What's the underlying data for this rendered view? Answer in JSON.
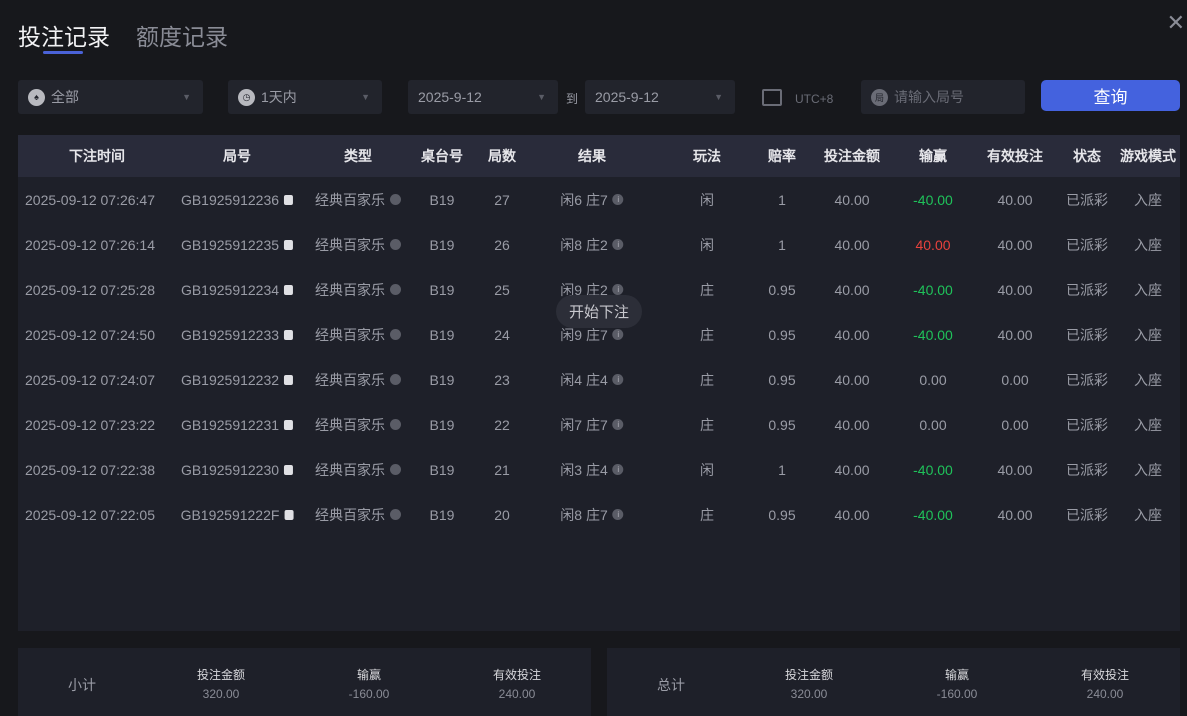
{
  "tabs": [
    "投注记录",
    "额度记录"
  ],
  "filters": {
    "game": "全部",
    "period": "1天内",
    "date_from": "2025-9-12",
    "to": "到",
    "date_to": "2025-9-12",
    "timezone": "UTC+8",
    "round_placeholder": "请输入局号",
    "query": "查询"
  },
  "columns": [
    "下注时间",
    "局号",
    "类型",
    "桌台号",
    "局数",
    "结果",
    "玩法",
    "赔率",
    "投注金额",
    "输赢",
    "有效投注",
    "状态",
    "游戏模式"
  ],
  "rows": [
    [
      "2025-09-12 07:26:47",
      "GB1925912236",
      "经典百家乐",
      "B19",
      "27",
      "闲6 庄7",
      "闲",
      "1",
      "40.00",
      "-40.00",
      "40.00",
      "已派彩",
      "入座"
    ],
    [
      "2025-09-12 07:26:14",
      "GB1925912235",
      "经典百家乐",
      "B19",
      "26",
      "闲8 庄2",
      "闲",
      "1",
      "40.00",
      "40.00",
      "40.00",
      "已派彩",
      "入座"
    ],
    [
      "2025-09-12 07:25:28",
      "GB1925912234",
      "经典百家乐",
      "B19",
      "25",
      "闲9 庄2",
      "庄",
      "0.95",
      "40.00",
      "-40.00",
      "40.00",
      "已派彩",
      "入座"
    ],
    [
      "2025-09-12 07:24:50",
      "GB1925912233",
      "经典百家乐",
      "B19",
      "24",
      "闲9 庄7",
      "庄",
      "0.95",
      "40.00",
      "-40.00",
      "40.00",
      "已派彩",
      "入座"
    ],
    [
      "2025-09-12 07:24:07",
      "GB1925912232",
      "经典百家乐",
      "B19",
      "23",
      "闲4 庄4",
      "庄",
      "0.95",
      "40.00",
      "0.00",
      "0.00",
      "已派彩",
      "入座"
    ],
    [
      "2025-09-12 07:23:22",
      "GB1925912231",
      "经典百家乐",
      "B19",
      "22",
      "闲7 庄7",
      "庄",
      "0.95",
      "40.00",
      "0.00",
      "0.00",
      "已派彩",
      "入座"
    ],
    [
      "2025-09-12 07:22:38",
      "GB1925912230",
      "经典百家乐",
      "B19",
      "21",
      "闲3 庄4",
      "闲",
      "1",
      "40.00",
      "-40.00",
      "40.00",
      "已派彩",
      "入座"
    ],
    [
      "2025-09-12 07:22:05",
      "GB192591222F",
      "经典百家乐",
      "B19",
      "20",
      "闲8 庄7",
      "庄",
      "0.95",
      "40.00",
      "-40.00",
      "40.00",
      "已派彩",
      "入座"
    ]
  ],
  "tooltip": "开始下注",
  "subtotal": {
    "label": "小计",
    "amount_label": "投注金额",
    "amount": "320.00",
    "winloss_label": "输赢",
    "winloss": "-160.00",
    "valid_label": "有效投注",
    "valid": "240.00"
  },
  "total": {
    "label": "总计",
    "amount_label": "投注金额",
    "amount": "320.00",
    "winloss_label": "输赢",
    "winloss": "-160.00",
    "valid_label": "有效投注",
    "valid": "240.00"
  },
  "colors": {
    "accent": "#4462de",
    "loss": "#1fc25a",
    "win": "#e8423d"
  }
}
